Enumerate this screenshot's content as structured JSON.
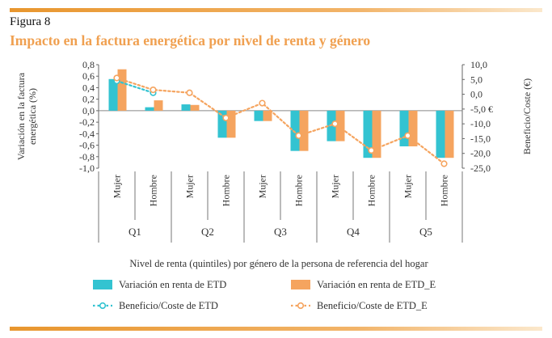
{
  "figure": {
    "label": "Figura 8",
    "title": "Impacto en la factura energética por nivel de renta y género",
    "title_color": "#f0a050"
  },
  "colors": {
    "rule": "#e8962e",
    "series_etd": "#33c3d1",
    "series_etd_e": "#f5a45f"
  },
  "chart_data": {
    "type": "bar",
    "quintiles": [
      "Q1",
      "Q2",
      "Q3",
      "Q4",
      "Q5"
    ],
    "categories": [
      "Mujer",
      "Hombre",
      "Mujer",
      "Hombre",
      "Mujer",
      "Hombre",
      "Mujer",
      "Hombre",
      "Mujer",
      "Hombre"
    ],
    "series": [
      {
        "name": "Variación en renta de ETD",
        "axis": "left",
        "kind": "bar",
        "color": "#33c3d1",
        "values": [
          0.55,
          0.06,
          0.11,
          -0.47,
          -0.18,
          -0.7,
          -0.53,
          -0.82,
          -0.62,
          -0.82
        ]
      },
      {
        "name": "Variación en renta de ETD_E",
        "axis": "left",
        "kind": "bar",
        "color": "#f5a45f",
        "values": [
          0.72,
          0.18,
          0.1,
          -0.47,
          -0.18,
          -0.7,
          -0.53,
          -0.82,
          -0.62,
          -0.82
        ]
      },
      {
        "name": "Beneficio/Coste de ETD",
        "axis": "right",
        "kind": "line",
        "color": "#33c3d1",
        "values": [
          4.5,
          0.5,
          null,
          null,
          null,
          null,
          null,
          null,
          null,
          null
        ]
      },
      {
        "name": "Beneficio/Coste de ETD_E",
        "axis": "right",
        "kind": "line",
        "color": "#f5a45f",
        "values": [
          5.5,
          1.5,
          0.5,
          -8.0,
          -3.0,
          -14.0,
          -10.0,
          -19.0,
          -14.0,
          -23.5
        ]
      }
    ],
    "ylabel": "Variación en la factura energética (%)",
    "y2label": "Beneficio/Coste (€)",
    "xlabel": "Nivel de renta (quintiles) por género de la persona de referencia del hogar",
    "ylim": [
      -1.0,
      0.8
    ],
    "y2lim": [
      -25.0,
      10.0
    ],
    "yticks": [
      "0,8",
      "0,6",
      "0,4",
      "0,2",
      "0,0",
      "-0,2",
      "-0,4",
      "-0,6",
      "-0,8",
      "-1,0"
    ],
    "y2ticks": [
      "10,0",
      "5,0",
      "0,0",
      "-5,0 €",
      "-10,0",
      "-15,0",
      "-20,0",
      "-25,0"
    ],
    "legend_position": "bottom",
    "grid": false
  }
}
